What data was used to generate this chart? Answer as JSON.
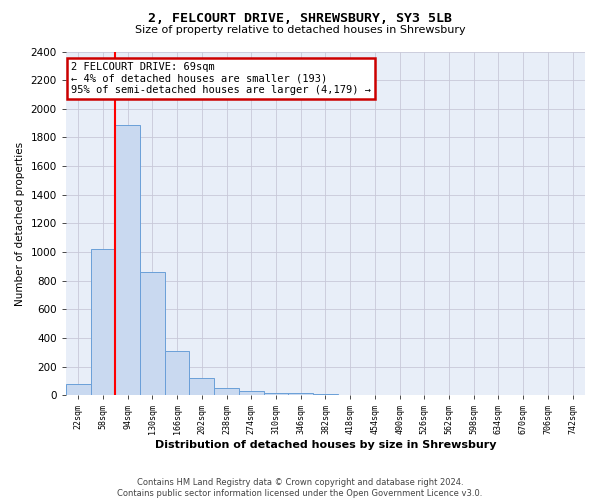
{
  "title_line1": "2, FELCOURT DRIVE, SHREWSBURY, SY3 5LB",
  "title_line2": "Size of property relative to detached houses in Shrewsbury",
  "xlabel": "Distribution of detached houses by size in Shrewsbury",
  "ylabel": "Number of detached properties",
  "footer_line1": "Contains HM Land Registry data © Crown copyright and database right 2024.",
  "footer_line2": "Contains public sector information licensed under the Open Government Licence v3.0.",
  "bar_categories": [
    "22sqm",
    "58sqm",
    "94sqm",
    "130sqm",
    "166sqm",
    "202sqm",
    "238sqm",
    "274sqm",
    "310sqm",
    "346sqm",
    "382sqm",
    "418sqm",
    "454sqm",
    "490sqm",
    "526sqm",
    "562sqm",
    "598sqm",
    "634sqm",
    "670sqm",
    "706sqm",
    "742sqm"
  ],
  "bar_values": [
    80,
    1020,
    1890,
    860,
    310,
    120,
    50,
    30,
    20,
    15,
    10,
    0,
    0,
    0,
    0,
    0,
    0,
    0,
    0,
    0,
    0
  ],
  "bar_color": "#c9d9f0",
  "bar_edge_color": "#6a9fd8",
  "grid_color": "#c8c8d8",
  "bg_color": "#e8eef8",
  "red_line_x": 1.5,
  "annotation_text": "2 FELCOURT DRIVE: 69sqm\n← 4% of detached houses are smaller (193)\n95% of semi-detached houses are larger (4,179) →",
  "annotation_box_facecolor": "#ffffff",
  "annotation_box_edgecolor": "#cc0000",
  "ylim": [
    0,
    2400
  ],
  "yticks": [
    0,
    200,
    400,
    600,
    800,
    1000,
    1200,
    1400,
    1600,
    1800,
    2000,
    2200,
    2400
  ]
}
